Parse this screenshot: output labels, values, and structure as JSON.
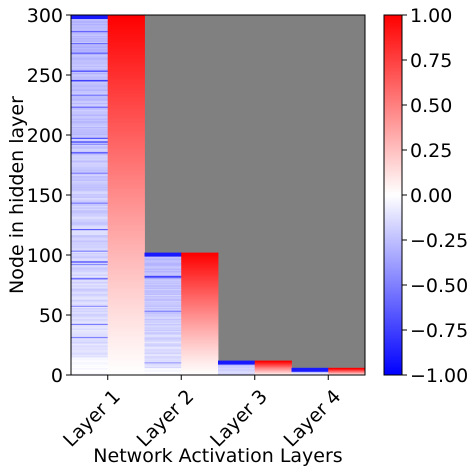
{
  "chart_data": {
    "type": "heatmap",
    "xlabel": "Network Activation Layers",
    "ylabel": "Node in hidden layer",
    "ylim": [
      0,
      300
    ],
    "y_ticks": [
      0,
      50,
      100,
      150,
      200,
      250,
      300
    ],
    "background_color": "#808080",
    "colormap": "bwr",
    "colorbar": {
      "vmin": -1.0,
      "vmax": 1.0,
      "ticks": [
        -1.0,
        -0.75,
        -0.5,
        -0.25,
        0.0,
        0.25,
        0.5,
        0.75,
        1.0
      ],
      "tick_labels": [
        "−1.00",
        "−0.75",
        "−0.50",
        "−0.25",
        "0.00",
        "0.25",
        "0.50",
        "0.75",
        "1.00"
      ]
    },
    "layers": [
      {
        "label": "Layer 1",
        "nodes": 300
      },
      {
        "label": "Layer 2",
        "nodes": 102
      },
      {
        "label": "Layer 3",
        "nodes": 12
      },
      {
        "label": "Layer 4",
        "nodes": 6
      }
    ],
    "columns": [
      {
        "layer": "Layer 1",
        "kind": "mixed",
        "nodes": 300
      },
      {
        "layer": "Layer 1",
        "kind": "sorted",
        "nodes": 300
      },
      {
        "layer": "Layer 2",
        "kind": "mixed",
        "nodes": 102
      },
      {
        "layer": "Layer 2",
        "kind": "sorted",
        "nodes": 102
      },
      {
        "layer": "Layer 3",
        "kind": "mixed",
        "nodes": 12
      },
      {
        "layer": "Layer 3",
        "kind": "sorted",
        "nodes": 12
      },
      {
        "layer": "Layer 4",
        "kind": "mixed",
        "nodes": 6
      },
      {
        "layer": "Layer 4",
        "kind": "sorted",
        "nodes": 6
      }
    ]
  }
}
